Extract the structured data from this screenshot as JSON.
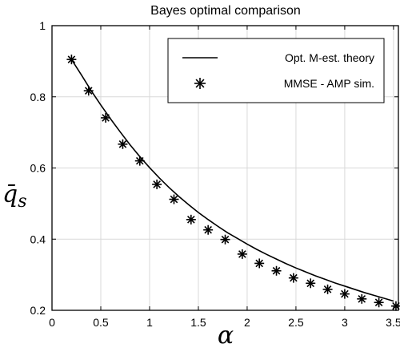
{
  "chart_data": {
    "type": "line",
    "title": "Bayes optimal comparison",
    "xlabel": "α",
    "ylabel": "q̄",
    "ylabel_sub": "s",
    "xlim": [
      0,
      3.55
    ],
    "ylim": [
      0.2,
      1.0
    ],
    "xticks": [
      0,
      0.5,
      1,
      1.5,
      2,
      2.5,
      3,
      3.5
    ],
    "xtick_labels": [
      "0",
      "0.5",
      "1",
      "1.5",
      "2",
      "2.5",
      "3",
      "3.5"
    ],
    "yticks": [
      0.2,
      0.4,
      0.6,
      0.8,
      1.0
    ],
    "ytick_labels": [
      "0.2",
      "0.4",
      "0.6",
      "0.8",
      "1"
    ],
    "grid": true,
    "legend_position": "top-right",
    "series": [
      {
        "name": "Opt. M-est. theory",
        "style": "line",
        "color": "#000000",
        "x": [
          0.2,
          0.3,
          0.4,
          0.5,
          0.6,
          0.7,
          0.8,
          0.9,
          1.0,
          1.1,
          1.2,
          1.3,
          1.4,
          1.5,
          1.6,
          1.7,
          1.8,
          1.9,
          2.0,
          2.1,
          2.2,
          2.3,
          2.4,
          2.5,
          2.6,
          2.7,
          2.8,
          2.9,
          3.0,
          3.1,
          3.2,
          3.3,
          3.4,
          3.5
        ],
        "y": [
          0.905,
          0.862,
          0.818,
          0.777,
          0.738,
          0.701,
          0.665,
          0.632,
          0.601,
          0.572,
          0.545,
          0.52,
          0.497,
          0.475,
          0.455,
          0.436,
          0.418,
          0.402,
          0.386,
          0.371,
          0.357,
          0.344,
          0.331,
          0.319,
          0.308,
          0.297,
          0.287,
          0.277,
          0.268,
          0.259,
          0.25,
          0.242,
          0.234,
          0.226
        ]
      },
      {
        "name": "MMSE - AMP sim.",
        "style": "marker",
        "marker": "asterisk",
        "color": "#000000",
        "x": [
          0.2,
          0.375,
          0.55,
          0.725,
          0.9,
          1.075,
          1.25,
          1.425,
          1.6,
          1.775,
          1.95,
          2.125,
          2.3,
          2.475,
          2.65,
          2.825,
          3.0,
          3.175,
          3.35,
          3.525
        ],
        "y": [
          0.905,
          0.817,
          0.741,
          0.667,
          0.62,
          0.554,
          0.512,
          0.455,
          0.426,
          0.399,
          0.358,
          0.332,
          0.311,
          0.291,
          0.276,
          0.259,
          0.246,
          0.232,
          0.222,
          0.212
        ]
      }
    ]
  }
}
